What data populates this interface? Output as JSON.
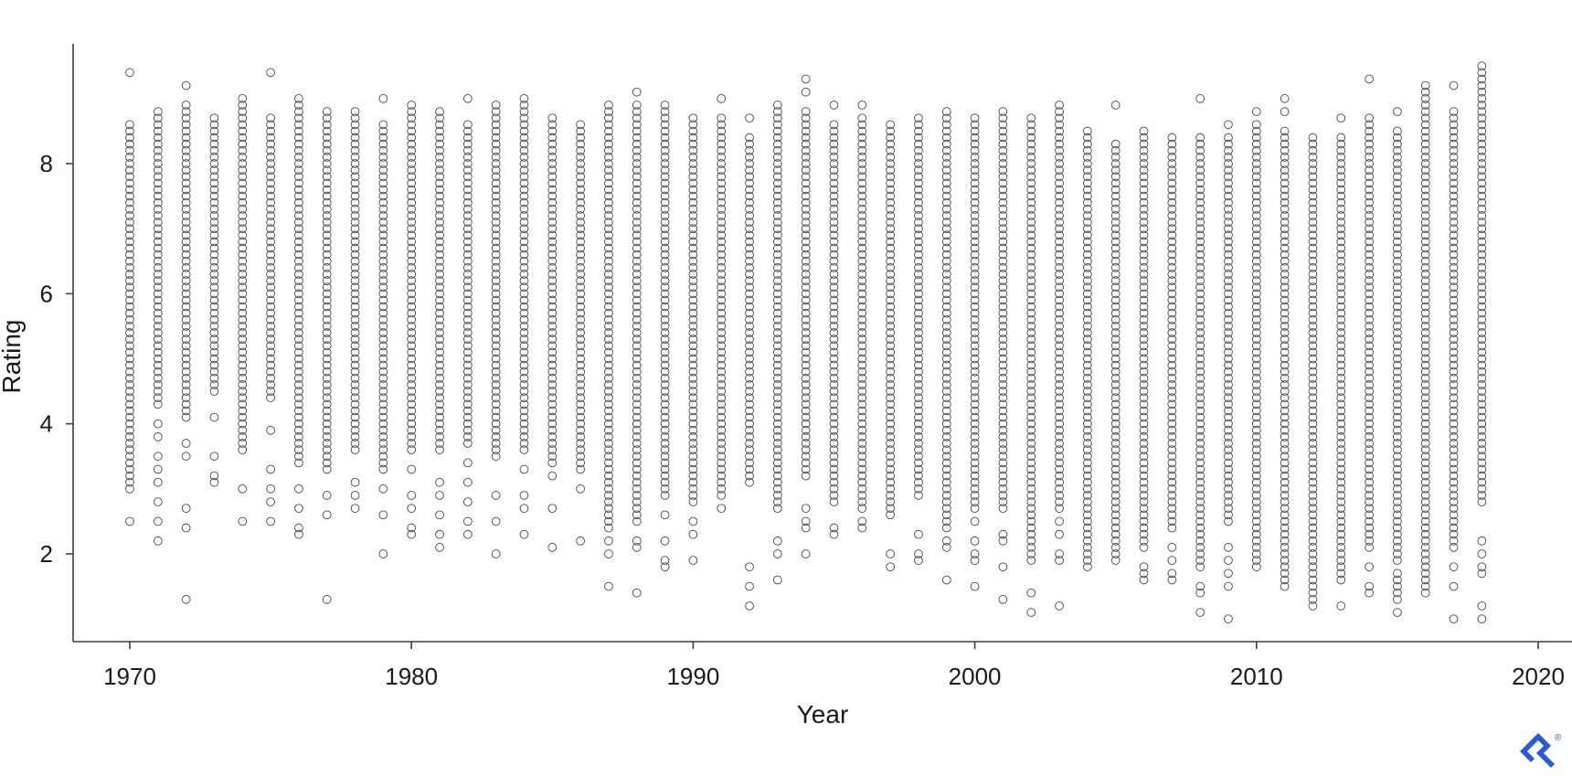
{
  "chart_data": {
    "type": "scatter",
    "title": "",
    "xlabel": "Year",
    "ylabel": "Rating",
    "xlim": [
      1968,
      2021
    ],
    "ylim": [
      0.65,
      9.9
    ],
    "x_ticks": [
      1970,
      1980,
      1990,
      2000,
      2010,
      2020
    ],
    "y_ticks": [
      2,
      4,
      6,
      8
    ],
    "grid": false,
    "legend": "none",
    "marker": "hollow-circle",
    "marker_color": "#444444",
    "axis_color": "#3a3f4f",
    "series": [
      {
        "points_by_year": [
          {
            "year": 1970,
            "min": 3.0,
            "max": 8.6,
            "extra": [
              9.4,
              2.5,
              3.1,
              3.3,
              3.7,
              4.4
            ]
          },
          {
            "year": 1971,
            "min": 4.3,
            "max": 8.8,
            "extra": [
              2.2,
              2.5,
              2.8,
              3.1,
              3.3,
              3.5,
              3.8,
              4.0
            ]
          },
          {
            "year": 1972,
            "min": 4.1,
            "max": 8.9,
            "extra": [
              9.2,
              1.3,
              2.4,
              2.7,
              3.5,
              3.7
            ]
          },
          {
            "year": 1973,
            "min": 4.5,
            "max": 8.7,
            "extra": [
              3.1,
              3.2,
              3.5,
              4.1
            ]
          },
          {
            "year": 1974,
            "min": 3.6,
            "max": 9.0,
            "extra": [
              2.5,
              3.0
            ]
          },
          {
            "year": 1975,
            "min": 4.4,
            "max": 8.7,
            "extra": [
              9.4,
              2.5,
              2.8,
              3.0,
              3.3,
              3.9
            ]
          },
          {
            "year": 1976,
            "min": 3.4,
            "max": 9.0,
            "extra": [
              2.3,
              2.4,
              2.7,
              3.0
            ]
          },
          {
            "year": 1977,
            "min": 3.3,
            "max": 8.8,
            "extra": [
              1.3,
              2.6,
              2.9
            ]
          },
          {
            "year": 1978,
            "min": 3.6,
            "max": 8.8,
            "extra": [
              2.7,
              2.9,
              3.1
            ]
          },
          {
            "year": 1979,
            "min": 3.3,
            "max": 8.6,
            "extra": [
              9.0,
              2.0,
              2.6,
              3.0
            ]
          },
          {
            "year": 1980,
            "min": 3.6,
            "max": 8.9,
            "extra": [
              2.3,
              2.4,
              2.7,
              2.9,
              3.3
            ]
          },
          {
            "year": 1981,
            "min": 3.6,
            "max": 8.8,
            "extra": [
              2.1,
              2.3,
              2.6,
              2.9,
              3.1
            ]
          },
          {
            "year": 1982,
            "min": 3.7,
            "max": 8.6,
            "extra": [
              9.0,
              2.3,
              2.5,
              2.8,
              3.1,
              3.4
            ]
          },
          {
            "year": 1983,
            "min": 3.5,
            "max": 8.9,
            "extra": [
              2.0,
              2.5,
              2.9
            ]
          },
          {
            "year": 1984,
            "min": 3.6,
            "max": 9.0,
            "extra": [
              2.3,
              2.7,
              2.9,
              3.3
            ]
          },
          {
            "year": 1985,
            "min": 3.4,
            "max": 8.7,
            "extra": [
              2.1,
              2.7,
              3.2
            ]
          },
          {
            "year": 1986,
            "min": 3.3,
            "max": 8.6,
            "extra": [
              2.2,
              3.0
            ]
          },
          {
            "year": 1987,
            "min": 2.4,
            "max": 8.9,
            "extra": [
              1.5,
              2.0,
              2.2
            ]
          },
          {
            "year": 1988,
            "min": 2.5,
            "max": 8.9,
            "extra": [
              9.1,
              1.4,
              2.1,
              2.2
            ]
          },
          {
            "year": 1989,
            "min": 2.9,
            "max": 8.9,
            "extra": [
              1.8,
              1.9,
              2.2,
              2.6
            ]
          },
          {
            "year": 1990,
            "min": 2.8,
            "max": 8.7,
            "extra": [
              1.9,
              2.3,
              2.5
            ]
          },
          {
            "year": 1991,
            "min": 2.9,
            "max": 8.7,
            "extra": [
              9.0,
              2.7
            ]
          },
          {
            "year": 1992,
            "min": 3.1,
            "max": 8.4,
            "extra": [
              8.7,
              1.2,
              1.5,
              1.8
            ]
          },
          {
            "year": 1993,
            "min": 2.7,
            "max": 8.9,
            "extra": [
              1.6,
              2.0,
              2.2
            ]
          },
          {
            "year": 1994,
            "min": 3.2,
            "max": 8.8,
            "extra": [
              9.3,
              9.1,
              2.0,
              2.4,
              2.5,
              2.7
            ]
          },
          {
            "year": 1995,
            "min": 2.9,
            "max": 8.6,
            "extra": [
              8.9,
              2.3,
              2.4,
              2.8
            ]
          },
          {
            "year": 1996,
            "min": 2.7,
            "max": 8.7,
            "extra": [
              8.9,
              2.4,
              2.5
            ]
          },
          {
            "year": 1997,
            "min": 2.6,
            "max": 8.6,
            "extra": [
              1.8,
              2.0
            ]
          },
          {
            "year": 1998,
            "min": 2.9,
            "max": 8.7,
            "extra": [
              1.9,
              2.0,
              2.3
            ]
          },
          {
            "year": 1999,
            "min": 2.4,
            "max": 8.8,
            "extra": [
              1.6,
              2.1,
              2.2
            ]
          },
          {
            "year": 2000,
            "min": 2.7,
            "max": 8.7,
            "extra": [
              1.5,
              1.9,
              2.0,
              2.2,
              2.5
            ]
          },
          {
            "year": 2001,
            "min": 2.7,
            "max": 8.8,
            "extra": [
              1.3,
              1.8,
              2.2,
              2.3
            ]
          },
          {
            "year": 2002,
            "min": 1.9,
            "max": 8.7,
            "extra": [
              1.1,
              1.4
            ]
          },
          {
            "year": 2003,
            "min": 2.7,
            "max": 8.9,
            "extra": [
              1.2,
              1.9,
              2.0,
              2.3,
              2.5
            ]
          },
          {
            "year": 2004,
            "min": 1.8,
            "max": 8.5,
            "extra": []
          },
          {
            "year": 2005,
            "min": 1.9,
            "max": 8.3,
            "extra": [
              8.9
            ]
          },
          {
            "year": 2006,
            "min": 2.1,
            "max": 8.5,
            "extra": [
              1.6,
              1.7,
              1.8
            ]
          },
          {
            "year": 2007,
            "min": 2.4,
            "max": 8.4,
            "extra": [
              1.6,
              1.7,
              1.9,
              2.1
            ]
          },
          {
            "year": 2008,
            "min": 1.8,
            "max": 8.4,
            "extra": [
              9.0,
              1.1,
              1.4,
              1.5
            ]
          },
          {
            "year": 2009,
            "min": 2.5,
            "max": 8.4,
            "extra": [
              8.6,
              1.0,
              1.5,
              1.7,
              1.9,
              2.1
            ]
          },
          {
            "year": 2010,
            "min": 1.8,
            "max": 8.6,
            "extra": [
              8.8,
              2.0
            ]
          },
          {
            "year": 2011,
            "min": 1.5,
            "max": 8.5,
            "extra": [
              9.0,
              8.8
            ]
          },
          {
            "year": 2012,
            "min": 1.2,
            "max": 8.4,
            "extra": []
          },
          {
            "year": 2013,
            "min": 1.6,
            "max": 8.4,
            "extra": [
              8.7,
              1.2
            ]
          },
          {
            "year": 2014,
            "min": 2.1,
            "max": 8.7,
            "extra": [
              9.3,
              1.4,
              1.5,
              1.8
            ]
          },
          {
            "year": 2015,
            "min": 1.9,
            "max": 8.5,
            "extra": [
              8.8,
              1.1,
              1.3,
              1.4,
              1.5,
              1.6,
              1.7
            ]
          },
          {
            "year": 2016,
            "min": 1.4,
            "max": 9.2,
            "extra": []
          },
          {
            "year": 2017,
            "min": 2.1,
            "max": 8.8,
            "extra": [
              9.2,
              1.0,
              1.5,
              1.8
            ]
          },
          {
            "year": 2018,
            "min": 2.8,
            "max": 9.4,
            "extra": [
              9.5,
              1.0,
              1.2,
              1.7,
              1.8,
              2.0,
              2.2
            ]
          }
        ]
      }
    ]
  },
  "watermark": {
    "icon": "toptal-logo-icon",
    "mark": "®",
    "color": "#2a5bd7"
  }
}
